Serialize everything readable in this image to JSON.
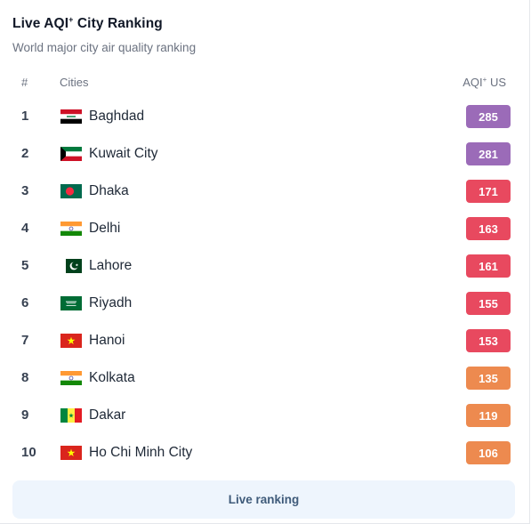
{
  "header": {
    "title": "Live AQI",
    "title_sup": "+",
    "title_suffix": "City Ranking",
    "subtitle": "World major city air quality ranking"
  },
  "columns": {
    "rank": "#",
    "city": "Cities",
    "aqi": "AQI",
    "aqi_sup": "+",
    "aqi_suffix": "US"
  },
  "colors": {
    "very_unhealthy": "#9b6bb8",
    "unhealthy": "#e8495f",
    "unhealthy_sensitive": "#ed8a4f"
  },
  "rows": [
    {
      "rank": "1",
      "city": "Baghdad",
      "flag": "iraq-flag-icon",
      "aqi": "285",
      "color": "#9b6bb8"
    },
    {
      "rank": "2",
      "city": "Kuwait City",
      "flag": "kuwait-flag-icon",
      "aqi": "281",
      "color": "#9b6bb8"
    },
    {
      "rank": "3",
      "city": "Dhaka",
      "flag": "bangladesh-flag-icon",
      "aqi": "171",
      "color": "#e8495f"
    },
    {
      "rank": "4",
      "city": "Delhi",
      "flag": "india-flag-icon",
      "aqi": "163",
      "color": "#e8495f"
    },
    {
      "rank": "5",
      "city": "Lahore",
      "flag": "pakistan-flag-icon",
      "aqi": "161",
      "color": "#e8495f"
    },
    {
      "rank": "6",
      "city": "Riyadh",
      "flag": "saudi-arabia-flag-icon",
      "aqi": "155",
      "color": "#e8495f"
    },
    {
      "rank": "7",
      "city": "Hanoi",
      "flag": "vietnam-flag-icon",
      "aqi": "153",
      "color": "#e8495f"
    },
    {
      "rank": "8",
      "city": "Kolkata",
      "flag": "india-flag-icon",
      "aqi": "135",
      "color": "#ed8a4f"
    },
    {
      "rank": "9",
      "city": "Dakar",
      "flag": "senegal-flag-icon",
      "aqi": "119",
      "color": "#ed8a4f"
    },
    {
      "rank": "10",
      "city": "Ho Chi Minh City",
      "flag": "vietnam-flag-icon",
      "aqi": "106",
      "color": "#ed8a4f"
    }
  ],
  "footer": {
    "button_label": "Live ranking"
  }
}
